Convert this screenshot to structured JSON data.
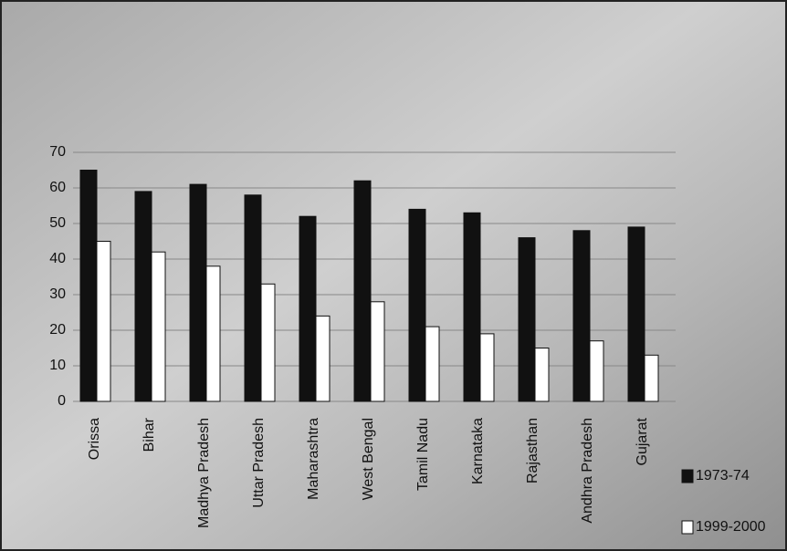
{
  "chart_data": {
    "type": "bar",
    "categories": [
      "Orissa",
      "Bihar",
      "Madhya Pradesh",
      "Uttar Pradesh",
      "Maharashtra",
      "West Bengal",
      "Tamil Nadu",
      "Karnataka",
      "Rajasthan",
      "Andhra Pradesh",
      "Gujarat"
    ],
    "series": [
      {
        "name": "1973-74",
        "color": "#111111",
        "values": [
          65,
          59,
          61,
          58,
          52,
          62,
          54,
          53,
          46,
          48,
          49
        ]
      },
      {
        "name": "1999-2000",
        "color": "#ffffff",
        "values": [
          45,
          42,
          38,
          33,
          24,
          28,
          21,
          19,
          15,
          17,
          13
        ]
      }
    ],
    "ylim": [
      0,
      70
    ],
    "yticks": [
      0,
      10,
      20,
      30,
      40,
      50,
      60,
      70
    ],
    "grid": true,
    "legend": "bottom-right"
  }
}
